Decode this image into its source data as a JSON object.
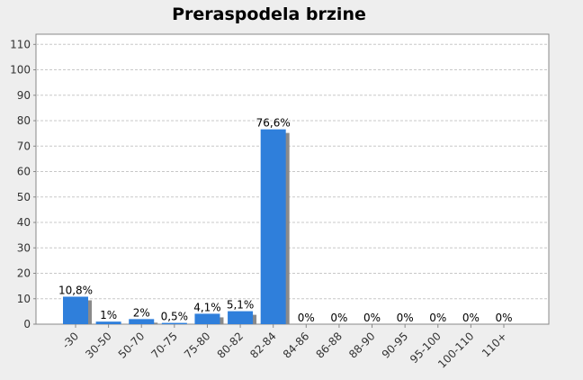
{
  "chart_data": {
    "type": "bar",
    "title": "Preraspodela brzine",
    "categories": [
      "-30",
      "30-50",
      "50-70",
      "70-75",
      "75-80",
      "80-82",
      "82-84",
      "84-86",
      "86-88",
      "88-90",
      "90-95",
      "95-100",
      "100-110",
      "110+"
    ],
    "values": [
      10.8,
      1,
      2,
      0.5,
      4.1,
      5.1,
      76.6,
      0,
      0,
      0,
      0,
      0,
      0,
      0
    ],
    "value_labels": [
      "10,8%",
      "1%",
      "2%",
      "0,5%",
      "4,1%",
      "5,1%",
      "76,6%",
      "0%",
      "0%",
      "0%",
      "0%",
      "0%",
      "0%",
      "0%"
    ],
    "color": "#2f7fdb",
    "ylim": [
      0,
      114
    ],
    "yticks": [
      0,
      10,
      20,
      30,
      40,
      50,
      60,
      70,
      80,
      90,
      100,
      110
    ],
    "grid": true
  }
}
